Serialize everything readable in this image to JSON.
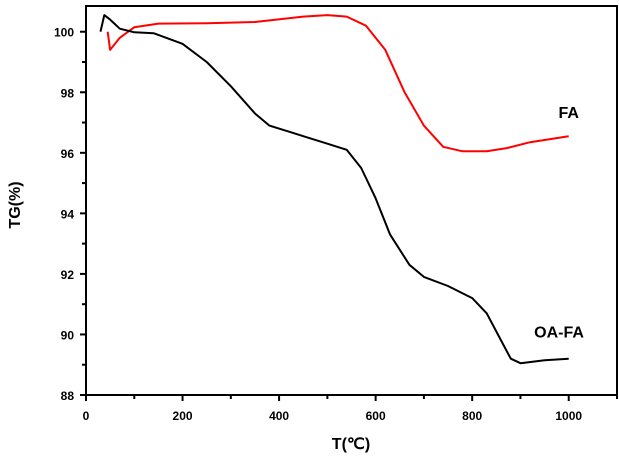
{
  "chart_data": {
    "type": "line",
    "title": "",
    "xlabel": "T(℃)",
    "ylabel": "TG(%)",
    "xlim": [
      0,
      1100
    ],
    "ylim": [
      88,
      100.85
    ],
    "xticks": [
      0,
      200,
      400,
      600,
      800,
      1000
    ],
    "yticks": [
      88,
      90,
      92,
      94,
      96,
      98,
      100
    ],
    "grid": false,
    "series": [
      {
        "name": "FA",
        "color": "#ff0000",
        "label_pos": [
          1000,
          97.15
        ],
        "x": [
          45,
          50,
          70,
          100,
          150,
          250,
          350,
          450,
          500,
          540,
          580,
          620,
          660,
          700,
          740,
          780,
          830,
          870,
          920,
          1000
        ],
        "y": [
          100.0,
          99.4,
          99.8,
          100.15,
          100.27,
          100.28,
          100.32,
          100.5,
          100.55,
          100.5,
          100.2,
          99.4,
          98.0,
          96.9,
          96.2,
          96.05,
          96.05,
          96.15,
          96.35,
          96.55
        ]
      },
      {
        "name": "OA-FA",
        "color": "#000000",
        "label_pos": [
          980,
          89.9
        ],
        "x": [
          30,
          38,
          50,
          70,
          100,
          140,
          200,
          250,
          300,
          350,
          380,
          420,
          460,
          500,
          540,
          570,
          600,
          630,
          670,
          700,
          750,
          800,
          830,
          860,
          880,
          900,
          950,
          1000
        ],
        "y": [
          100.0,
          100.55,
          100.4,
          100.1,
          99.98,
          99.95,
          99.6,
          99.0,
          98.2,
          97.3,
          96.9,
          96.7,
          96.5,
          96.3,
          96.1,
          95.5,
          94.5,
          93.3,
          92.3,
          91.9,
          91.6,
          91.2,
          90.7,
          89.8,
          89.2,
          89.05,
          89.15,
          89.2
        ]
      }
    ]
  }
}
